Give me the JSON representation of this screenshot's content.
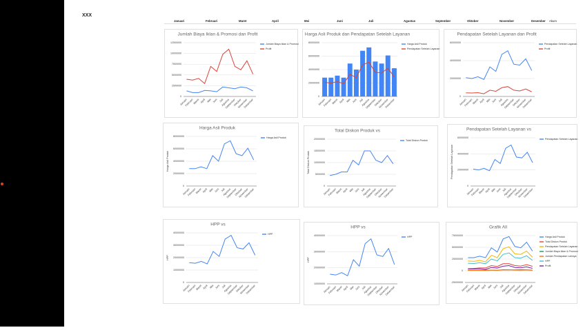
{
  "header": {
    "title": "XXX",
    "columns": [
      "Januari",
      "Februari",
      "Maret",
      "April",
      "Mei",
      "Juni",
      "Juli",
      "Agustus",
      "September",
      "Oktober",
      "November",
      "Desember",
      "Akum"
    ]
  },
  "chart_data": [
    {
      "type": "line",
      "title": "Jumlah Biaya Iklan & Promosi dan Profit",
      "legend": "right",
      "grid": true,
      "categories": [
        "Januari",
        "Februari",
        "Maret",
        "April",
        "Mei",
        "Juni",
        "Juli",
        "Agustus",
        "September",
        "Oktober",
        "November",
        "Desember"
      ],
      "ylim": [
        0,
        12500000
      ],
      "yticks": [
        0,
        2500000,
        5000000,
        7500000,
        10000000,
        12500000
      ],
      "series": [
        {
          "name": "Jumlah Biaya Iklan & Promosi",
          "color": "#4285f4",
          "values": [
            1300000,
            900000,
            900000,
            1400000,
            1300000,
            1100000,
            2200000,
            2000000,
            1800000,
            2200000,
            2000000,
            1300000
          ]
        },
        {
          "name": "Profit",
          "color": "#db4437",
          "values": [
            4000000,
            3800000,
            4200000,
            3000000,
            7000000,
            5800000,
            9800000,
            11000000,
            7000000,
            6200000,
            8300000,
            5200000
          ]
        }
      ]
    },
    {
      "type": "combo",
      "title": "Harga Asli Produk dan Pendapatan Setelah Layanan",
      "legend": "right",
      "grid": true,
      "categories": [
        "Januari",
        "Februari",
        "Maret",
        "April",
        "Mei",
        "Juni",
        "Juli",
        "Agustus",
        "September",
        "Oktober",
        "November",
        "Desember"
      ],
      "ylim": [
        0,
        80000000
      ],
      "yticks": [
        0,
        20000000,
        40000000,
        60000000,
        80000000
      ],
      "series": [
        {
          "name": "Harga Asli Produk",
          "kind": "bar",
          "color": "#4285f4",
          "values": [
            28000000,
            28000000,
            31000000,
            28000000,
            49000000,
            40000000,
            68000000,
            73000000,
            52000000,
            49000000,
            61000000,
            42000000
          ]
        },
        {
          "name": "Pendapatan Setelah Layanan",
          "kind": "line",
          "color": "#db4437",
          "values": [
            21000000,
            20000000,
            22000000,
            19000000,
            33000000,
            28000000,
            47000000,
            51000000,
            36000000,
            35000000,
            42000000,
            29000000
          ]
        }
      ]
    },
    {
      "type": "line",
      "title": "Pendapatan Setelah Layanan dan Profit",
      "legend": "right",
      "grid": true,
      "categories": [
        "Januari",
        "Februari",
        "Maret",
        "April",
        "Mei",
        "Juni",
        "Juli",
        "Agustus",
        "September",
        "Oktober",
        "November",
        "Desember"
      ],
      "ylim": [
        0,
        60000000
      ],
      "yticks": [
        0,
        20000000,
        40000000,
        60000000
      ],
      "series": [
        {
          "name": "Pendapatan Setelah Layanan",
          "color": "#4285f4",
          "values": [
            21000000,
            20000000,
            22000000,
            19000000,
            33000000,
            28000000,
            47000000,
            51000000,
            36000000,
            35000000,
            42000000,
            29000000
          ]
        },
        {
          "name": "Profit",
          "color": "#db4437",
          "values": [
            4000000,
            3800000,
            4200000,
            3000000,
            7000000,
            5800000,
            9800000,
            11000000,
            7000000,
            6200000,
            8300000,
            5200000
          ]
        }
      ]
    },
    {
      "type": "line",
      "title": "Harga Asli Produk",
      "ylabel": "Harga Asli Produk",
      "legend": "right",
      "grid": true,
      "categories": [
        "Januari",
        "Februari",
        "Maret",
        "April",
        "Mei",
        "Juni",
        "Juli",
        "Agustus",
        "September",
        "Oktober",
        "November",
        "Desember"
      ],
      "ylim": [
        0,
        80000000
      ],
      "yticks": [
        0,
        20000000,
        40000000,
        60000000,
        80000000
      ],
      "series": [
        {
          "name": "Harga Asli Produk",
          "color": "#4285f4",
          "values": [
            28000000,
            28000000,
            31000000,
            28000000,
            49000000,
            40000000,
            68000000,
            73000000,
            52000000,
            49000000,
            61000000,
            42000000
          ]
        }
      ]
    },
    {
      "type": "line",
      "title": "Total Diskon Produk vs",
      "ylabel": "Total Diskon Produk",
      "legend": "right",
      "grid": true,
      "categories": [
        "Januari",
        "Februari",
        "Maret",
        "April",
        "Mei",
        "Juni",
        "Juli",
        "Agustus",
        "September",
        "Oktober",
        "November",
        "Desember"
      ],
      "ylim": [
        0,
        20000000
      ],
      "yticks": [
        0,
        5000000,
        10000000,
        15000000,
        20000000
      ],
      "series": [
        {
          "name": "Total Diskon Produk",
          "color": "#4285f4",
          "values": [
            4500000,
            5000000,
            6000000,
            6000000,
            11000000,
            9000000,
            15000000,
            15000000,
            11000000,
            10000000,
            13000000,
            9500000
          ]
        }
      ]
    },
    {
      "type": "line",
      "title": "Pendapatan Setelah Layanan vs",
      "ylabel": "Pendapatan Setelah Layanan",
      "legend": "right",
      "grid": true,
      "categories": [
        "Januari",
        "Februari",
        "Maret",
        "April",
        "Mei",
        "Juni",
        "Juli",
        "Agustus",
        "September",
        "Oktober",
        "November",
        "Desember"
      ],
      "ylim": [
        0,
        60000000
      ],
      "yticks": [
        0,
        20000000,
        40000000,
        60000000
      ],
      "series": [
        {
          "name": "Pendapatan Setelah Layanan",
          "color": "#4285f4",
          "values": [
            21000000,
            20000000,
            22000000,
            19000000,
            33000000,
            28000000,
            47000000,
            51000000,
            36000000,
            35000000,
            42000000,
            29000000
          ]
        }
      ]
    },
    {
      "type": "line",
      "title": "HPP vs",
      "ylabel": "HPP",
      "legend": "right",
      "grid": true,
      "categories": [
        "Januari",
        "Februari",
        "Maret",
        "April",
        "Mei",
        "Juni",
        "Juli",
        "Agustus",
        "September",
        "Oktober",
        "November",
        "Desember"
      ],
      "ylim": [
        0,
        40000000
      ],
      "yticks": [
        0,
        10000000,
        20000000,
        30000000,
        40000000
      ],
      "series": [
        {
          "name": "HPP",
          "color": "#4285f4",
          "values": [
            16000000,
            15500000,
            17000000,
            15000000,
            25000000,
            21000000,
            35000000,
            38000000,
            28000000,
            27000000,
            32000000,
            22000000
          ]
        }
      ]
    },
    {
      "type": "line",
      "title": "HPP vs",
      "ylabel": "HPP",
      "legend": "right",
      "grid": true,
      "categories": [
        "Januari",
        "Februari",
        "Maret",
        "April",
        "Mei",
        "Juni",
        "Juli",
        "Agustus",
        "September",
        "Oktober",
        "November",
        "Desember"
      ],
      "ylim": [
        10000000,
        40000000
      ],
      "yticks": [
        10000000,
        20000000,
        30000000,
        40000000
      ],
      "series": [
        {
          "name": "HPP",
          "color": "#4285f4",
          "values": [
            16000000,
            15500000,
            17000000,
            15000000,
            25000000,
            21000000,
            35000000,
            38000000,
            28000000,
            27000000,
            32000000,
            22000000
          ]
        }
      ]
    },
    {
      "type": "line",
      "title": "Grafik All",
      "legend": "right",
      "grid": true,
      "categories": [
        "Januari",
        "Februari",
        "Maret",
        "April",
        "Mei",
        "Juni",
        "Juli",
        "Agustus",
        "September",
        "Oktober",
        "November",
        "Desember"
      ],
      "ylim": [
        -25000000,
        75000000
      ],
      "yticks": [
        -25000000,
        0,
        25000000,
        50000000,
        75000000
      ],
      "series": [
        {
          "name": "Harga Asli Produk",
          "color": "#4285f4",
          "values": [
            28000000,
            28000000,
            31000000,
            28000000,
            49000000,
            40000000,
            68000000,
            73000000,
            52000000,
            49000000,
            61000000,
            42000000
          ]
        },
        {
          "name": "Total Diskon Produk",
          "color": "#db4437",
          "values": [
            4500000,
            5000000,
            6000000,
            6000000,
            11000000,
            9000000,
            15000000,
            15000000,
            11000000,
            10000000,
            13000000,
            9500000
          ]
        },
        {
          "name": "Pendapatan Setelah Layanan",
          "color": "#f4b400",
          "values": [
            21000000,
            20000000,
            22000000,
            19000000,
            33000000,
            28000000,
            47000000,
            51000000,
            36000000,
            35000000,
            42000000,
            29000000
          ]
        },
        {
          "name": "Jumlah Biaya Iklan & Promosi",
          "color": "#0f9d58",
          "values": [
            1300000,
            900000,
            900000,
            1400000,
            1300000,
            1100000,
            2200000,
            2000000,
            1800000,
            2200000,
            2000000,
            1300000
          ]
        },
        {
          "name": "Jumlah Pendapatan Lainnya",
          "color": "#ff6d01",
          "values": [
            800000,
            700000,
            900000,
            700000,
            1200000,
            1000000,
            1600000,
            1800000,
            1300000,
            1200000,
            1500000,
            1000000
          ]
        },
        {
          "name": "HPP",
          "color": "#46bdc6",
          "values": [
            16000000,
            15500000,
            17000000,
            15000000,
            25000000,
            21000000,
            35000000,
            38000000,
            28000000,
            27000000,
            32000000,
            22000000
          ]
        },
        {
          "name": "Profit",
          "color": "#7b1fa2",
          "values": [
            4000000,
            3800000,
            4200000,
            3000000,
            7000000,
            5800000,
            9800000,
            11000000,
            7000000,
            6200000,
            8300000,
            5200000
          ]
        }
      ]
    }
  ]
}
